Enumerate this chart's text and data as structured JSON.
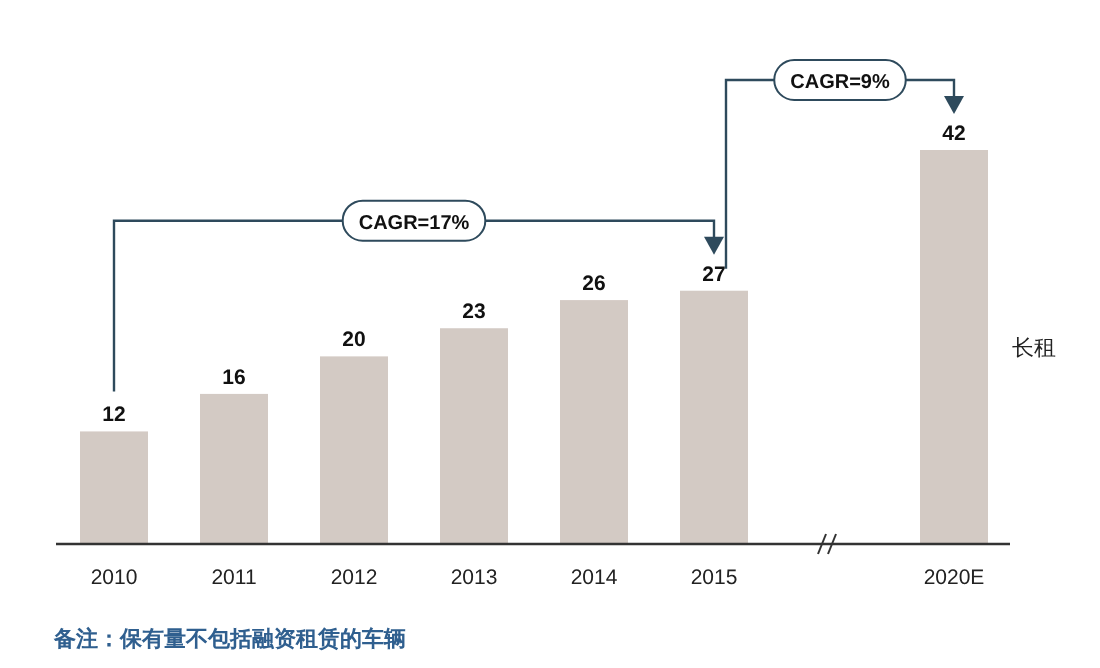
{
  "chart_data": {
    "type": "bar",
    "categories": [
      "2010",
      "2011",
      "2012",
      "2013",
      "2014",
      "2015",
      null,
      "2020E"
    ],
    "series": [
      {
        "name": "长租",
        "color": "#d3cac4",
        "values": [
          12,
          16,
          20,
          23,
          26,
          27,
          null,
          42
        ]
      }
    ],
    "data_labels": true,
    "annotations": [
      "CAGR=17%",
      "CAGR=9%",
      "备注：保有量不包括融资租赁的车辆"
    ]
  }
}
